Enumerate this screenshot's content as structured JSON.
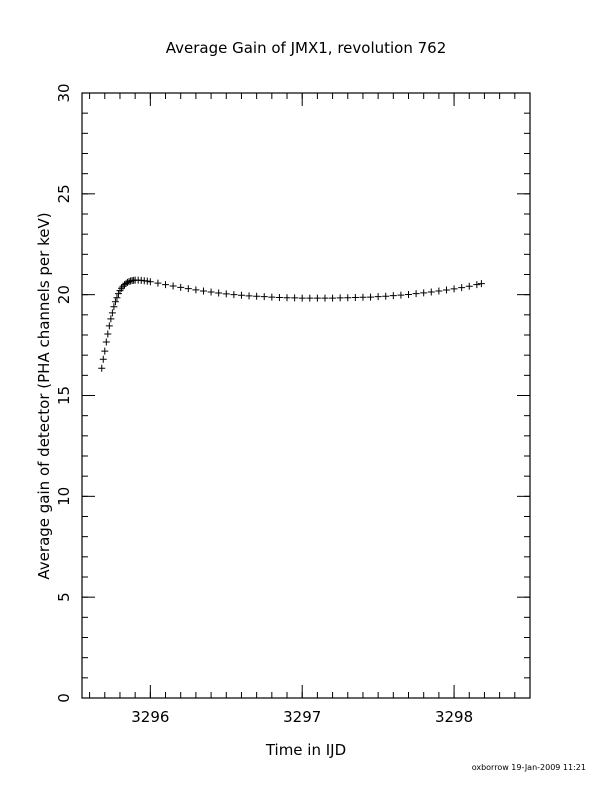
{
  "chart_data": {
    "type": "scatter",
    "title": "Average Gain of JMX1, revolution 762",
    "xlabel": "Time in IJD",
    "ylabel": "Average gain of detector (PHA channels per keV)",
    "xlim": [
      3295.55,
      3298.5
    ],
    "ylim": [
      0,
      30
    ],
    "x_ticks": [
      3296,
      3297,
      3298
    ],
    "x_tick_labels": [
      "3296",
      "3297",
      "3298"
    ],
    "y_ticks": [
      0,
      5,
      10,
      15,
      20,
      25,
      30
    ],
    "y_tick_labels": [
      "0",
      "5",
      "10",
      "15",
      "20",
      "25",
      "30"
    ],
    "x_minor_step": 0.1,
    "y_minor_step": 1,
    "grid": false,
    "marker": "plus",
    "series": [
      {
        "x": [
          3295.68,
          3295.69,
          3295.7,
          3295.71,
          3295.72,
          3295.73,
          3295.74,
          3295.75,
          3295.76,
          3295.77,
          3295.78,
          3295.79,
          3295.8,
          3295.81,
          3295.82,
          3295.83,
          3295.84,
          3295.85,
          3295.86,
          3295.87,
          3295.88,
          3295.89,
          3295.9,
          3295.92,
          3295.94,
          3295.96,
          3295.98,
          3296.0,
          3296.05,
          3296.1,
          3296.15,
          3296.2,
          3296.25,
          3296.3,
          3296.35,
          3296.4,
          3296.45,
          3296.5,
          3296.55,
          3296.6,
          3296.65,
          3296.7,
          3296.75,
          3296.8,
          3296.85,
          3296.9,
          3296.95,
          3297.0,
          3297.05,
          3297.1,
          3297.15,
          3297.2,
          3297.25,
          3297.3,
          3297.35,
          3297.4,
          3297.45,
          3297.5,
          3297.55,
          3297.6,
          3297.65,
          3297.7,
          3297.75,
          3297.8,
          3297.85,
          3297.9,
          3297.95,
          3298.0,
          3298.05,
          3298.1,
          3298.15,
          3298.18
        ],
        "y": [
          16.35,
          16.8,
          17.2,
          17.65,
          18.05,
          18.45,
          18.8,
          19.1,
          19.4,
          19.65,
          19.85,
          20.05,
          20.2,
          20.32,
          20.42,
          20.5,
          20.56,
          20.61,
          20.65,
          20.68,
          20.7,
          20.71,
          20.72,
          20.72,
          20.71,
          20.69,
          20.67,
          20.64,
          20.57,
          20.5,
          20.43,
          20.36,
          20.3,
          20.24,
          20.18,
          20.13,
          20.08,
          20.04,
          20.0,
          19.97,
          19.94,
          19.92,
          19.9,
          19.88,
          19.86,
          19.85,
          19.84,
          19.83,
          19.83,
          19.83,
          19.83,
          19.83,
          19.84,
          19.85,
          19.86,
          19.87,
          19.88,
          19.9,
          19.92,
          19.95,
          19.98,
          20.01,
          20.05,
          20.09,
          20.13,
          20.18,
          20.23,
          20.29,
          20.35,
          20.42,
          20.5,
          20.55
        ]
      }
    ]
  },
  "footer": {
    "credit": "oxborrow 19-Jan-2009 11:21"
  }
}
